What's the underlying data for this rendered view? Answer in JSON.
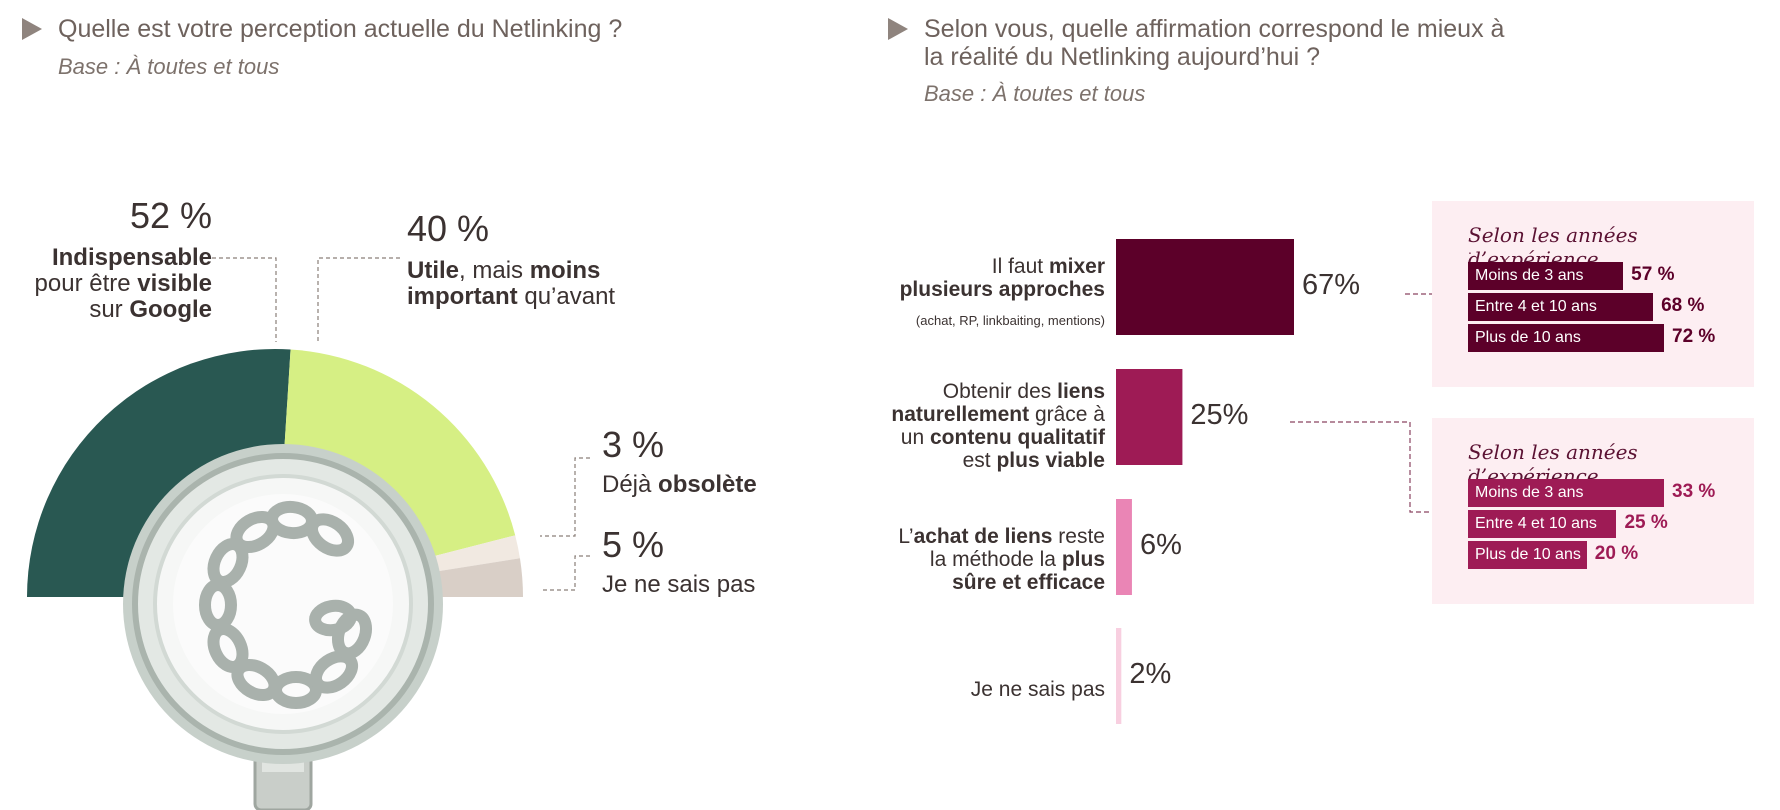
{
  "left": {
    "question": "Quelle est votre perception actuelle du Netlinking ?",
    "base": "Base : À toutes et tous",
    "labels": [
      {
        "pct": "52 %",
        "parts": [
          {
            "t": "Indispensable",
            "b": true
          },
          {
            "t": "\npour être ",
            "b": false
          },
          {
            "t": "visible",
            "b": true
          },
          {
            "t": "\nsur ",
            "b": false
          },
          {
            "t": "Google",
            "b": true
          }
        ]
      },
      {
        "pct": "40 %",
        "parts": [
          {
            "t": "Utile",
            "b": true
          },
          {
            "t": ", mais ",
            "b": false
          },
          {
            "t": "moins",
            "b": true
          },
          {
            "t": "\n",
            "b": false
          },
          {
            "t": "important",
            "b": true
          },
          {
            "t": " qu’avant",
            "b": false
          }
        ]
      },
      {
        "pct": "3 %",
        "parts": [
          {
            "t": "Déjà ",
            "b": false
          },
          {
            "t": "obsolète",
            "b": true
          }
        ]
      },
      {
        "pct": "5 %",
        "parts": [
          {
            "t": "Je ne sais pas",
            "b": false
          }
        ]
      }
    ]
  },
  "right": {
    "question_line1": "Selon vous, quelle affirmation correspond le mieux à",
    "question_line2": "la réalité du Netlinking aujourd’hui ?",
    "base": "Base : À toutes et tous",
    "bar_labels": [
      {
        "parts": [
          {
            "t": "Il faut ",
            "b": false
          },
          {
            "t": "mixer",
            "b": true
          },
          {
            "t": "\nplusieurs approches",
            "b": true
          }
        ],
        "sub": "(achat, RP, linkbaiting, mentions)"
      },
      {
        "parts": [
          {
            "t": "Obtenir des ",
            "b": false
          },
          {
            "t": "liens",
            "b": true
          },
          {
            "t": "\nnaturellement",
            "b": true
          },
          {
            "t": " grâce à",
            "b": false
          },
          {
            "t": "\nun ",
            "b": false
          },
          {
            "t": "contenu qualitatif",
            "b": true
          },
          {
            "t": "\nest ",
            "b": false
          },
          {
            "t": "plus viable",
            "b": true
          }
        ],
        "sub": ""
      },
      {
        "parts": [
          {
            "t": "L’",
            "b": false
          },
          {
            "t": "achat de liens",
            "b": true
          },
          {
            "t": " reste",
            "b": false
          },
          {
            "t": "\nla méthode la ",
            "b": false
          },
          {
            "t": "plus",
            "b": true
          },
          {
            "t": "\nsûre et efficace",
            "b": true
          }
        ],
        "sub": ""
      },
      {
        "parts": [
          {
            "t": "Je ne sais pas",
            "b": false
          }
        ],
        "sub": ""
      }
    ],
    "bar_pct_labels": [
      "67%",
      "25%",
      "6%",
      "2%"
    ],
    "panels": [
      {
        "title": "Selon les années d’expérience",
        "colon": ":",
        "rows": [
          {
            "label": "Moins de 3 ans",
            "pct": "57 %"
          },
          {
            "label": "Entre 4 et 10 ans",
            "pct": "68 %"
          },
          {
            "label": "Plus de 10 ans",
            "pct": "72 %"
          }
        ]
      },
      {
        "title": "Selon les années d’expérience",
        "colon": ":",
        "rows": [
          {
            "label": "Moins de 3 ans",
            "pct": "33 %"
          },
          {
            "label": "Entre 4 et 10 ans",
            "pct": "25 %"
          },
          {
            "label": "Plus de 10 ans",
            "pct": "20 %"
          }
        ]
      }
    ]
  },
  "colors": {
    "pie": [
      "#295852",
      "#d6ef84",
      "#f1e9e1",
      "#d9cfc7"
    ],
    "bars": [
      "#5c0029",
      "#9e1b55",
      "#ea85b5",
      "#f8cfe0"
    ],
    "panel_bars_1": "#5c0029",
    "panel_bars_2": "#9e1b55",
    "panel_bg": "#fdeef2"
  },
  "chart_data": [
    {
      "type": "pie",
      "title": "Quelle est votre perception actuelle du Netlinking ?",
      "categories": [
        "Indispensable pour être visible sur Google",
        "Utile, mais moins important qu’avant",
        "Déjà obsolète",
        "Je ne sais pas"
      ],
      "values": [
        52,
        40,
        3,
        5
      ],
      "unit": "%"
    },
    {
      "type": "bar",
      "orientation": "horizontal",
      "title": "Selon vous, quelle affirmation correspond le mieux à la réalité du Netlinking aujourd’hui ?",
      "categories": [
        "Il faut mixer plusieurs approches",
        "Obtenir des liens naturellement grâce à un contenu qualitatif est plus viable",
        "L’achat de liens reste la méthode la plus sûre et efficace",
        "Je ne sais pas"
      ],
      "values": [
        67,
        25,
        6,
        2
      ],
      "unit": "%"
    },
    {
      "type": "bar",
      "orientation": "horizontal",
      "title": "Selon les années d’expérience",
      "categories": [
        "Moins de 3 ans",
        "Entre 4 et 10 ans",
        "Plus de 10 ans"
      ],
      "values": [
        57,
        68,
        72
      ],
      "unit": "%"
    },
    {
      "type": "bar",
      "orientation": "horizontal",
      "title": "Selon les années d’expérience",
      "categories": [
        "Moins de 3 ans",
        "Entre 4 et 10 ans",
        "Plus de 10 ans"
      ],
      "values": [
        33,
        25,
        20
      ],
      "unit": "%"
    }
  ]
}
